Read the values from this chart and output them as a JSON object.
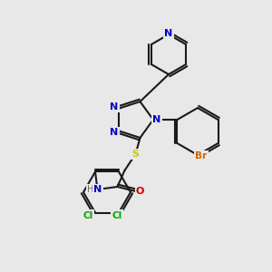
{
  "bg_color": "#e8e8e8",
  "bond_color": "#1a1a1a",
  "bond_lw": 1.5,
  "atom_colors": {
    "N": "#0000cc",
    "S": "#cccc00",
    "O": "#cc0000",
    "Cl": "#00aa00",
    "Br": "#cc6600",
    "H": "#666666",
    "C": "#1a1a1a"
  }
}
